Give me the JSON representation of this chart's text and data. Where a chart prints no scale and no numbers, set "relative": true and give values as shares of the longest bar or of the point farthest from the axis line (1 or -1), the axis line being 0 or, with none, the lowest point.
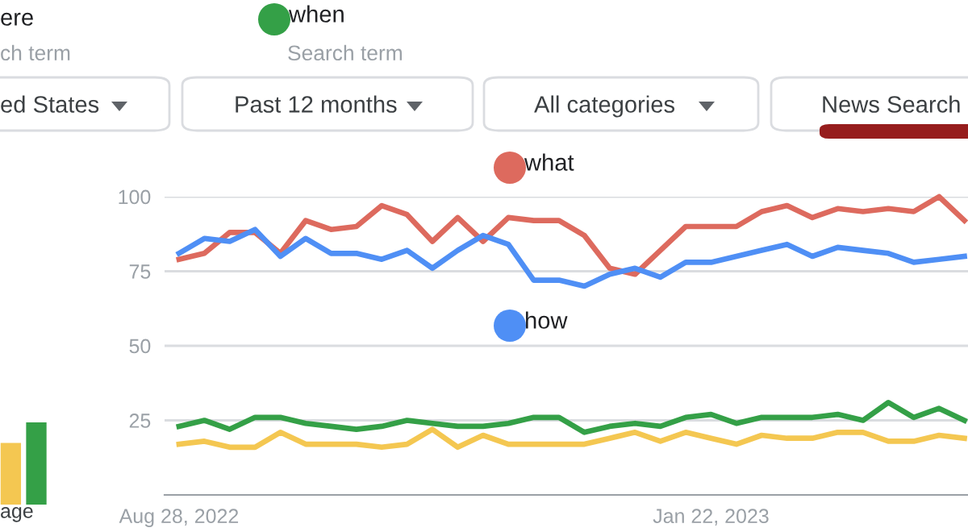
{
  "chart_data": [
    {
      "type": "line",
      "x": [
        "2022-08-28",
        "2022-09-04",
        "2022-09-11",
        "2022-09-18",
        "2022-09-25",
        "2022-10-02",
        "2022-10-09",
        "2022-10-16",
        "2022-10-23",
        "2022-10-30",
        "2022-11-06",
        "2022-11-13",
        "2022-11-20",
        "2022-11-27",
        "2022-12-04",
        "2022-12-11",
        "2022-12-18",
        "2022-12-25",
        "2023-01-01",
        "2023-01-08",
        "2023-01-15",
        "2023-01-22",
        "2023-01-29",
        "2023-02-05",
        "2023-02-12",
        "2023-02-19",
        "2023-02-26",
        "2023-03-05",
        "2023-03-12",
        "2023-03-19",
        "2023-03-26",
        "2023-04-02"
      ],
      "series": [
        {
          "color": "#f4c751",
          "values": [
            17,
            18,
            16,
            16,
            21,
            17,
            17,
            17,
            16,
            17,
            22,
            16,
            20,
            17,
            17,
            17,
            17,
            19,
            21,
            18,
            21,
            19,
            17,
            20,
            19,
            19,
            21,
            21,
            18,
            18,
            20,
            19
          ]
        },
        {
          "name": "when",
          "color": "#34a047",
          "values": [
            23,
            25,
            22,
            26,
            26,
            24,
            23,
            22,
            23,
            25,
            24,
            23,
            23,
            24,
            26,
            26,
            21,
            23,
            24,
            23,
            26,
            27,
            24,
            26,
            26,
            26,
            27,
            25,
            31,
            26,
            29,
            25
          ]
        },
        {
          "name": "what",
          "color": "#dd6a5e",
          "values": [
            79,
            81,
            88,
            88,
            81,
            92,
            89,
            90,
            97,
            94,
            85,
            93,
            85,
            93,
            92,
            92,
            87,
            76,
            74,
            82,
            90,
            90,
            90,
            95,
            97,
            93,
            96,
            95,
            96,
            95,
            100,
            92
          ]
        },
        {
          "name": "how",
          "color": "#4f8ff5",
          "values": [
            81,
            86,
            85,
            89,
            80,
            86,
            81,
            81,
            79,
            82,
            76,
            82,
            87,
            84,
            72,
            72,
            70,
            74,
            76,
            73,
            78,
            78,
            80,
            82,
            84,
            80,
            83,
            82,
            81,
            78,
            79,
            80
          ]
        }
      ],
      "xlim": [
        "2022-08-24",
        "2023-04-03"
      ],
      "xticks": [
        {
          "value": "2022-08-28",
          "label": "Aug 28, 2022"
        },
        {
          "value": "2023-01-22",
          "label": "Jan 22, 2023"
        }
      ],
      "ylim": [
        0,
        100
      ],
      "yticks": [
        25,
        50,
        75,
        100
      ],
      "grid": "y",
      "legend": "top",
      "marker": "none",
      "line_style": "solid",
      "annotations": [
        "ere",
        "ch term",
        "Search term",
        "ed States",
        "Past 12 months",
        "All categories",
        "News Search"
      ]
    },
    {
      "type": "bar",
      "categories": [
        null,
        null
      ],
      "relative": true,
      "colors": [
        "#f4c751",
        "#34a047"
      ],
      "values": [
        0.75,
        1
      ],
      "annotations": [
        "age"
      ]
    }
  ]
}
